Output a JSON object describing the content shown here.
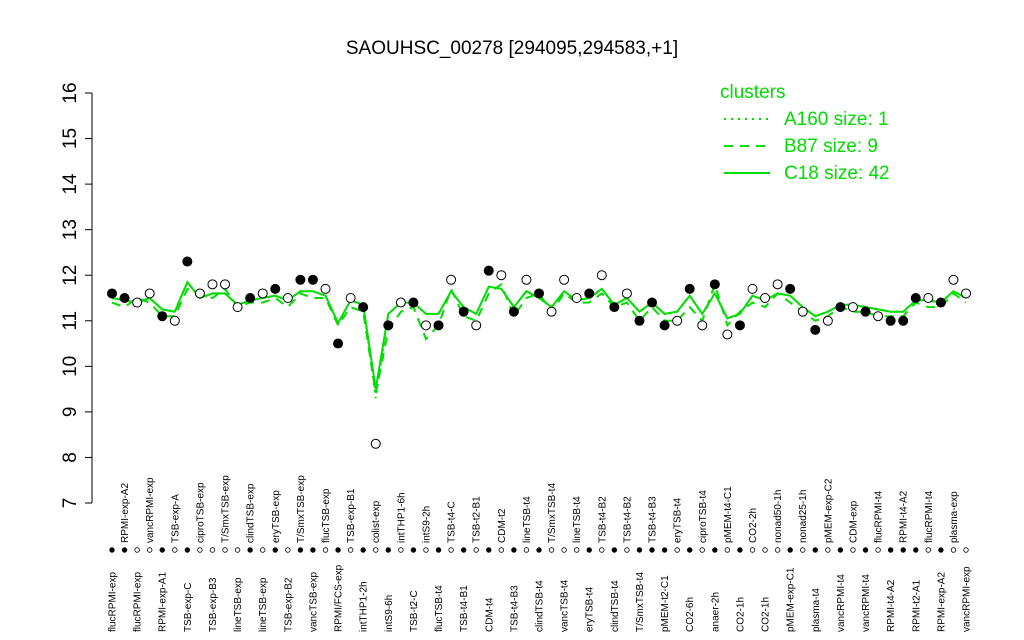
{
  "chart_data": {
    "type": "line",
    "title": "SAOUHSC_00278 [294095,294583,+1]",
    "categories": [
      "flucRPMI-exp",
      "RPMI-exp-A2",
      "flucRPMI-exp",
      "vancRPMI-exp",
      "RPMI-exp-A1",
      "TSB-exp-A",
      "TSB-exp-C",
      "ciproTSB-exp",
      "TSB-exp-B3",
      "T/SmxTSB-exp",
      "lineTSB-exp",
      "clindTSB-exp",
      "lineTSB-exp",
      "eryTSB-exp",
      "TSB-exp-B2",
      "T/SmxTSB-exp",
      "vancTSB-exp",
      "flucTSB-exp",
      "RPMI/FCS-exp",
      "TSB-exp-B1",
      "intTHP1-2h",
      "colist-exp",
      "intS9-6h",
      "intTHP1-6h",
      "TSB-t2-C",
      "intS9-2h",
      "flucTSB-t4",
      "TSB-t4-C",
      "TSB-t4-B1",
      "TSB-t2-B1",
      "CDM-t4",
      "CDM-t2",
      "TSB-t4-B3",
      "lineTSB-t4",
      "clindTSB-t4",
      "T/SmxTSB-t4",
      "vancTSB-t4",
      "lineTSB-t4",
      "eryTSB-t4",
      "TSB-t4-B2",
      "clindTSB-t4",
      "TSB-t4-B2",
      "T/SmxTSB-t4",
      "TSB-t4-B3",
      "pMEM-t2-C1",
      "eryTSB-t4",
      "CO2-6h",
      "ciproTSB-t4",
      "anaer-2h",
      "pMEM-t4-C1",
      "CO2-1h",
      "CO2-2h",
      "CO2-1h",
      "nonad50-1h",
      "pMEM-exp-C1",
      "nonad25-1h",
      "plasma-t4",
      "pMEM-exp-C2",
      "vancRPMI-t4",
      "CDM-exp",
      "vancRPMI-t4",
      "flucRPMI-t4",
      "RPMI-t4-A2",
      "RPMI-t4-A2",
      "RPMI-t2-A1",
      "flucRPMI-t4",
      "RPMI-exp-A2",
      "plasma-exp",
      "vancRPMI-exp"
    ],
    "values": [
      11.6,
      11.5,
      11.4,
      11.6,
      11.1,
      11.0,
      12.3,
      11.6,
      11.8,
      11.8,
      11.3,
      11.5,
      11.6,
      11.7,
      11.5,
      11.9,
      11.9,
      11.7,
      10.5,
      11.5,
      11.3,
      8.3,
      10.9,
      11.4,
      11.4,
      10.9,
      10.9,
      11.9,
      11.2,
      10.9,
      12.1,
      12.0,
      11.2,
      11.9,
      11.6,
      11.2,
      11.9,
      11.5,
      11.6,
      12.0,
      11.3,
      11.6,
      11.0,
      11.4,
      10.9,
      11.0,
      11.7,
      10.9,
      11.8,
      10.7,
      10.9,
      11.7,
      11.5,
      11.8,
      11.7,
      11.2,
      10.8,
      11.0,
      11.3,
      11.3,
      11.2,
      11.1,
      11.0,
      11.0,
      11.5,
      11.5,
      11.4,
      11.9,
      11.6
    ],
    "filled": [
      true,
      true,
      false,
      false,
      true,
      false,
      true,
      false,
      false,
      false,
      false,
      true,
      false,
      true,
      false,
      true,
      true,
      false,
      true,
      false,
      true,
      false,
      true,
      false,
      true,
      false,
      true,
      false,
      true,
      false,
      true,
      false,
      true,
      false,
      true,
      false,
      false,
      false,
      true,
      false,
      true,
      false,
      true,
      true,
      true,
      false,
      true,
      false,
      true,
      false,
      true,
      false,
      false,
      false,
      true,
      false,
      true,
      false,
      true,
      false,
      true,
      false,
      true,
      true,
      true,
      false,
      true,
      false,
      false
    ],
    "point_color": "#000000",
    "series": [
      {
        "name": "A160 size: 1",
        "color": "#00dd00",
        "dash": "dotted",
        "values": [
          11.5,
          11.45,
          11.4,
          11.5,
          11.25,
          11.2,
          11.85,
          11.5,
          11.6,
          11.6,
          11.35,
          11.45,
          11.5,
          11.55,
          11.45,
          11.65,
          11.65,
          11.55,
          10.95,
          11.45,
          11.35,
          9.3,
          11.15,
          11.4,
          11.4,
          11.15,
          11.15,
          11.65,
          11.3,
          11.15,
          11.75,
          11.7,
          11.3,
          11.65,
          11.5,
          11.3,
          11.65,
          11.45,
          11.5,
          11.7,
          11.35,
          11.5,
          11.2,
          11.4,
          11.15,
          11.2,
          11.55,
          11.15,
          11.6,
          11.05,
          11.15,
          11.55,
          11.45,
          11.6,
          11.55,
          11.3,
          11.1,
          11.2,
          11.35,
          11.35,
          11.3,
          11.25,
          11.2,
          11.2,
          11.45,
          11.45,
          11.4,
          11.65,
          11.5
        ]
      },
      {
        "name": "B87 size: 9",
        "color": "#00dd00",
        "dash": "dashed",
        "values": [
          11.4,
          11.3,
          11.5,
          11.4,
          11.1,
          11.1,
          11.7,
          11.6,
          11.5,
          11.7,
          11.3,
          11.4,
          11.4,
          11.5,
          11.3,
          11.6,
          11.5,
          11.5,
          10.9,
          11.3,
          11.2,
          9.4,
          10.8,
          11.2,
          11.3,
          10.6,
          10.9,
          11.7,
          11.1,
          11.0,
          11.6,
          11.8,
          11.1,
          11.5,
          11.6,
          11.2,
          11.6,
          11.4,
          11.4,
          11.6,
          11.3,
          11.4,
          11.0,
          11.3,
          11.0,
          11.0,
          11.3,
          11.0,
          11.8,
          10.9,
          11.2,
          11.4,
          11.3,
          11.6,
          11.4,
          11.2,
          11.0,
          11.1,
          11.3,
          11.2,
          11.2,
          11.1,
          11.1,
          11.1,
          11.4,
          11.3,
          11.3,
          11.6,
          11.4
        ]
      },
      {
        "name": "C18 size: 42",
        "color": "#00dd00",
        "dash": "solid",
        "values": [
          11.5,
          11.45,
          11.4,
          11.5,
          11.25,
          11.2,
          11.85,
          11.5,
          11.6,
          11.6,
          11.35,
          11.45,
          11.5,
          11.55,
          11.45,
          11.65,
          11.65,
          11.55,
          10.95,
          11.45,
          11.35,
          9.5,
          11.15,
          11.4,
          11.4,
          11.15,
          11.15,
          11.65,
          11.3,
          11.15,
          11.75,
          11.7,
          11.3,
          11.65,
          11.5,
          11.3,
          11.65,
          11.45,
          11.5,
          11.7,
          11.35,
          11.5,
          11.2,
          11.4,
          11.15,
          11.2,
          11.55,
          11.15,
          11.6,
          11.05,
          11.15,
          11.55,
          11.45,
          11.6,
          11.55,
          11.3,
          11.1,
          11.2,
          11.35,
          11.35,
          11.3,
          11.25,
          11.2,
          11.2,
          11.45,
          11.45,
          11.4,
          11.65,
          11.5
        ]
      }
    ],
    "legend_title": "clusters",
    "legend": "top-right",
    "ylim": [
      7,
      16
    ],
    "yticks": [
      7,
      8,
      9,
      10,
      11,
      12,
      13,
      14,
      15,
      16
    ]
  }
}
